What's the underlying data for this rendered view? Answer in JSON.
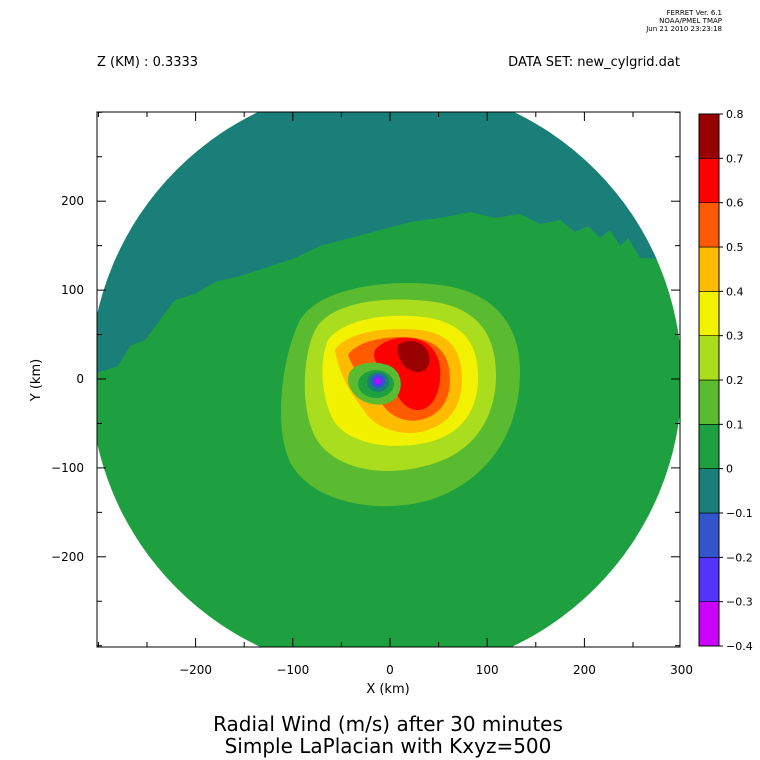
{
  "header": {
    "version_line1": "FERRET Ver. 6.1",
    "version_line2": "NOAA/PMEL TMAP",
    "version_line3": "Jun 21 2010 23:23:18",
    "z_label": "Z (KM) : 0.3333",
    "dataset_label": "DATA SET: new_cylgrid.dat"
  },
  "chart_data": {
    "type": "heatmap",
    "title": "Radial Wind (m/s) after 30 minutes",
    "subtitle": "Simple LaPlacian with Kxyz=500",
    "xlabel": "X (km)",
    "ylabel": "Y (km)",
    "xlim": [
      -300,
      300
    ],
    "ylim": [
      -300,
      300
    ],
    "x_ticks": [
      -200,
      -100,
      0,
      100,
      200,
      300
    ],
    "y_ticks": [
      -200,
      -100,
      0,
      100,
      200
    ],
    "x_minor_step": 50,
    "y_minor_step": 50,
    "domain_radius_km": 300,
    "colorbar": {
      "levels": [
        -0.4,
        -0.3,
        -0.2,
        -0.1,
        0,
        0.1,
        0.2,
        0.3,
        0.4,
        0.5,
        0.6,
        0.7,
        0.8
      ],
      "colors": [
        "#cc00ff",
        "#5533ff",
        "#3355cc",
        "#1a7f78",
        "#1fa040",
        "#5aba30",
        "#aadd1e",
        "#f2f200",
        "#ffbb00",
        "#ff5a00",
        "#ff0000",
        "#990000"
      ],
      "labels": [
        "0.8",
        "0.7",
        "0.6",
        "0.5",
        "0.4",
        "0.3",
        "0.2",
        "0.1",
        "0",
        "-0.1",
        "-0.2",
        "-0.3",
        "-0.4"
      ]
    },
    "background_field": {
      "band_0_to_0.1_fills_domain": true,
      "band_neg0.1_to_0_region": "northwest cap"
    },
    "features": [
      {
        "name": "central-positive-lobe",
        "center": [
          30,
          20
        ],
        "max_value": 0.8
      },
      {
        "name": "negative-core",
        "center": [
          -10,
          0
        ],
        "min_value": -0.4
      }
    ]
  }
}
